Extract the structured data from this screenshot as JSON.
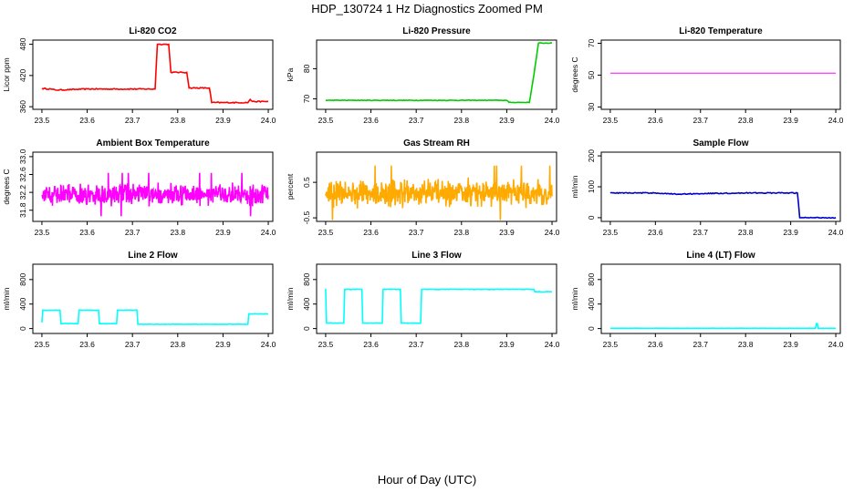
{
  "figure": {
    "title": "HDP_130724  1 Hz Diagnostics Zoomed PM",
    "xlabel": "Hour of Day (UTC)"
  },
  "chart_data": [
    {
      "type": "line",
      "title": "Li-820 CO2",
      "ylabel": "Licor ppm",
      "color": "#ff0000",
      "xlim": [
        23.48,
        24.01
      ],
      "ylim": [
        355,
        488
      ],
      "xticks": [
        "23.5",
        "23.6",
        "23.7",
        "23.8",
        "23.9",
        "24.0"
      ],
      "yticks": [
        "360",
        "420",
        "480"
      ],
      "x": [
        23.5,
        23.52,
        23.53,
        23.6,
        23.75,
        23.755,
        23.78,
        23.785,
        23.82,
        23.825,
        23.87,
        23.875,
        23.955,
        23.96,
        23.965,
        24.0
      ],
      "y": [
        395,
        394,
        392,
        394,
        394,
        480,
        480,
        426,
        426,
        396,
        396,
        368,
        368,
        374,
        370,
        370
      ],
      "noise": 1
    },
    {
      "type": "line",
      "title": "Li-820 Pressure",
      "ylabel": "kPa",
      "color": "#00cc00",
      "xlim": [
        23.48,
        24.01
      ],
      "ylim": [
        66.5,
        89.5
      ],
      "xticks": [
        "23.5",
        "23.6",
        "23.7",
        "23.8",
        "23.9",
        "24.0"
      ],
      "yticks": [
        "70",
        "80"
      ],
      "x": [
        23.5,
        23.9,
        23.905,
        23.95,
        23.96,
        23.97,
        24.0
      ],
      "y": [
        69.5,
        69.5,
        68.8,
        68.8,
        78,
        88.5,
        88.5
      ],
      "noise": 0.1
    },
    {
      "type": "line",
      "title": "Li-820 Temperature",
      "ylabel": "degrees C",
      "color": "#ff00ff",
      "xlim": [
        23.48,
        24.01
      ],
      "ylim": [
        28.5,
        72
      ],
      "xticks": [
        "23.5",
        "23.6",
        "23.7",
        "23.8",
        "23.9",
        "24.0"
      ],
      "yticks": [
        "30",
        "50",
        "70"
      ],
      "x": [
        23.5,
        24.0
      ],
      "y": [
        51.2,
        51.2
      ],
      "noise": 0
    },
    {
      "type": "line",
      "title": "Ambient Box Temperature",
      "ylabel": "degrees C",
      "color": "#ff00ff",
      "xlim": [
        23.48,
        24.01
      ],
      "ylim": [
        31.55,
        33.1
      ],
      "xticks": [
        "23.5",
        "23.6",
        "23.7",
        "23.8",
        "23.9",
        "24.0"
      ],
      "yticks": [
        "31.8",
        "32.2",
        "32.6",
        "33.0"
      ],
      "x": [
        23.5,
        24.0
      ],
      "y": [
        32.15,
        32.15
      ],
      "noise": 0.22
    },
    {
      "type": "line",
      "title": "Gas Stream RH",
      "ylabel": "percent",
      "color": "#ffaa00",
      "xlim": [
        23.48,
        24.01
      ],
      "ylim": [
        -0.6,
        1.35
      ],
      "xticks": [
        "23.5",
        "23.6",
        "23.7",
        "23.8",
        "23.9",
        "24.0"
      ],
      "yticks": [
        "-0.5",
        "0.5"
      ],
      "x": [
        23.5,
        24.0
      ],
      "y": [
        0.2,
        0.2
      ],
      "noise": 0.35
    },
    {
      "type": "line",
      "title": "Sample Flow",
      "ylabel": "ml/min",
      "color": "#0000cc",
      "xlim": [
        23.48,
        24.01
      ],
      "ylim": [
        -12,
        212
      ],
      "xticks": [
        "23.5",
        "23.6",
        "23.7",
        "23.8",
        "23.9",
        "24.0"
      ],
      "yticks": [
        "0",
        "100",
        "200"
      ],
      "x": [
        23.5,
        23.6,
        23.65,
        23.7,
        23.8,
        23.915,
        23.92,
        24.0
      ],
      "y": [
        80,
        80,
        76,
        78,
        80,
        80,
        0,
        0
      ],
      "noise": 1.5
    },
    {
      "type": "line",
      "title": "Line 2 Flow",
      "ylabel": "ml/min",
      "color": "#00ffff",
      "xlim": [
        23.48,
        24.01
      ],
      "ylim": [
        -80,
        1050
      ],
      "xticks": [
        "23.5",
        "23.6",
        "23.7",
        "23.8",
        "23.9",
        "24.0"
      ],
      "yticks": [
        "0",
        "400",
        "800"
      ],
      "x": [
        23.5,
        23.502,
        23.54,
        23.542,
        23.58,
        23.582,
        23.625,
        23.627,
        23.665,
        23.667,
        23.71,
        23.712,
        23.955,
        23.957,
        24.0
      ],
      "y": [
        100,
        300,
        300,
        80,
        80,
        300,
        300,
        80,
        80,
        300,
        300,
        70,
        70,
        240,
        240
      ],
      "noise": 3
    },
    {
      "type": "line",
      "title": "Line 3 Flow",
      "ylabel": "ml/min",
      "color": "#00ffff",
      "xlim": [
        23.48,
        24.01
      ],
      "ylim": [
        -80,
        1050
      ],
      "xticks": [
        "23.5",
        "23.6",
        "23.7",
        "23.8",
        "23.9",
        "24.0"
      ],
      "yticks": [
        "0",
        "400",
        "800"
      ],
      "x": [
        23.5,
        23.502,
        23.504,
        23.54,
        23.542,
        23.58,
        23.582,
        23.625,
        23.627,
        23.665,
        23.667,
        23.71,
        23.712,
        23.96,
        23.962,
        24.0
      ],
      "y": [
        650,
        90,
        90,
        90,
        640,
        640,
        90,
        90,
        640,
        640,
        90,
        90,
        640,
        640,
        600,
        600
      ],
      "noise": 4
    },
    {
      "type": "line",
      "title": "Line 4 (LT) Flow",
      "ylabel": "ml/min",
      "color": "#00ffff",
      "xlim": [
        23.48,
        24.01
      ],
      "ylim": [
        -80,
        1050
      ],
      "xticks": [
        "23.5",
        "23.6",
        "23.7",
        "23.8",
        "23.9",
        "24.0"
      ],
      "yticks": [
        "0",
        "400",
        "800"
      ],
      "x": [
        23.5,
        23.955,
        23.957,
        23.959,
        23.961,
        24.0
      ],
      "y": [
        5,
        5,
        80,
        80,
        5,
        5
      ],
      "noise": 1
    }
  ]
}
